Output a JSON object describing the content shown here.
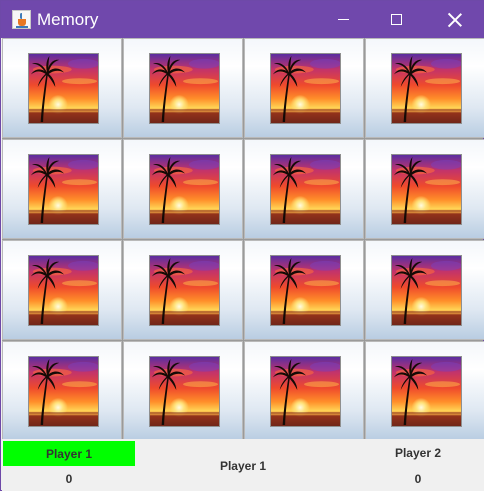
{
  "window": {
    "title": "Memory",
    "app_icon": "java-cup-icon"
  },
  "board": {
    "rows": 4,
    "cols": 4,
    "card_face": "palm-sunset-card-back-icon",
    "cards": [
      {
        "row": 1,
        "col": 1
      },
      {
        "row": 1,
        "col": 2
      },
      {
        "row": 1,
        "col": 3
      },
      {
        "row": 1,
        "col": 4
      },
      {
        "row": 2,
        "col": 1
      },
      {
        "row": 2,
        "col": 2
      },
      {
        "row": 2,
        "col": 3
      },
      {
        "row": 2,
        "col": 4
      },
      {
        "row": 3,
        "col": 1
      },
      {
        "row": 3,
        "col": 2
      },
      {
        "row": 3,
        "col": 3
      },
      {
        "row": 3,
        "col": 4
      },
      {
        "row": 4,
        "col": 1
      },
      {
        "row": 4,
        "col": 2
      },
      {
        "row": 4,
        "col": 3
      },
      {
        "row": 4,
        "col": 4
      }
    ]
  },
  "scoreboard": {
    "player1": {
      "name": "Player 1",
      "score": "0",
      "highlight_color": "#00ff00"
    },
    "current_turn": "Player 1",
    "player2": {
      "name": "Player 2",
      "score": "0"
    }
  },
  "colors": {
    "titlebar": "#7048ac",
    "active_player": "#00ff00"
  }
}
